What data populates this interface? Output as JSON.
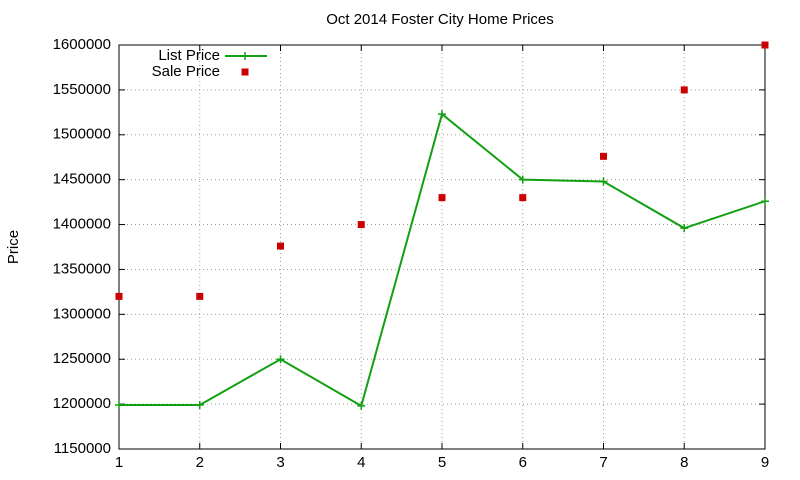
{
  "chart_data": {
    "type": "line",
    "title": "Oct 2014 Foster City Home Prices",
    "y_label": "Price",
    "x": [
      1,
      2,
      3,
      4,
      5,
      6,
      7,
      8,
      9
    ],
    "series": [
      {
        "name": "List Price",
        "color": "#11a011",
        "style": "linespoints",
        "values": [
          1199000,
          1199000,
          1250000,
          1198000,
          1523000,
          1450000,
          1448000,
          1396000,
          1426000
        ]
      },
      {
        "name": "Sale Price",
        "color": "#cc0000",
        "style": "points",
        "values": [
          1320000,
          1320000,
          1376000,
          1400000,
          1430000,
          1430000,
          1476000,
          1550000,
          1600000
        ]
      }
    ],
    "xlim": [
      1,
      9
    ],
    "xticks": [
      1,
      2,
      3,
      4,
      5,
      6,
      7,
      8,
      9
    ],
    "ylim": [
      1150000,
      1600000
    ],
    "yticks": [
      1150000,
      1200000,
      1250000,
      1300000,
      1350000,
      1400000,
      1450000,
      1500000,
      1550000,
      1600000
    ],
    "grid": true,
    "legend": "top-left"
  }
}
